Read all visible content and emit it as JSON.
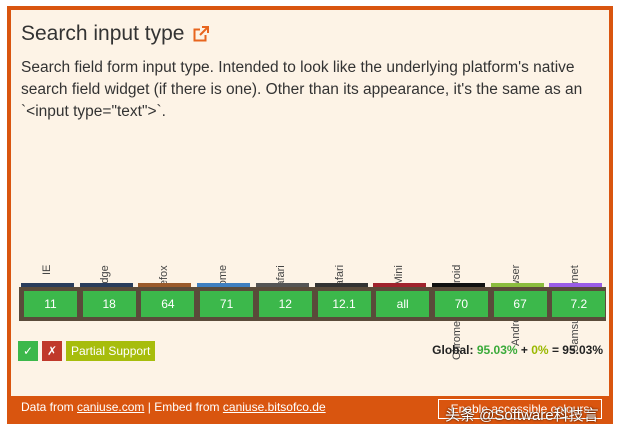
{
  "page": {
    "title": "Search input type",
    "description": "Search field form input type. Intended to look like the underlying platform's native search field widget (if there is one). Other than its appearance, it's the same as an `<input type=\"text\">`."
  },
  "browsers": [
    {
      "name": "IE",
      "version": "11",
      "bar_color": "#2a3d5c"
    },
    {
      "name": "Edge",
      "version": "18",
      "bar_color": "#2a3d5c"
    },
    {
      "name": "Firefox",
      "version": "64",
      "bar_color": "#9a5a2b"
    },
    {
      "name": "Chrome",
      "version": "71",
      "bar_color": "#3f7fc0"
    },
    {
      "name": "Safari",
      "version": "12",
      "bar_color": "#555555"
    },
    {
      "name": "iOS Safari",
      "version": "12.1",
      "bar_color": "#333333"
    },
    {
      "name": "Opera Mini",
      "version": "all",
      "bar_color": "#a0232d"
    },
    {
      "name": "Chrome for Android",
      "version": "70",
      "bar_color": "#111111"
    },
    {
      "name": "Android Browser",
      "version": "67",
      "bar_color": "#8bbd3f"
    },
    {
      "name": "Samsung Internet",
      "version": "7.2",
      "bar_color": "#9a5ce6"
    }
  ],
  "legend": {
    "supported_glyph": "✓",
    "unsupported_glyph": "✗",
    "partial_label": "Partial Support",
    "colors": {
      "supported": "#3cb84b",
      "unsupported": "#c0392b",
      "partial": "#a7bd0c"
    }
  },
  "global": {
    "label": "Global:",
    "full": "95.03%",
    "plus": "+",
    "partial": "0%",
    "equals": "=",
    "total": "95.03%"
  },
  "footer": {
    "data_from": "Data from",
    "caniuse_link": "caniuse.com",
    "separator": "| Embed from",
    "embed_link": "caniuse.bitsofco.de",
    "accessible_button": "Enable accessible colours"
  },
  "watermark": "头条 @Software科技言"
}
